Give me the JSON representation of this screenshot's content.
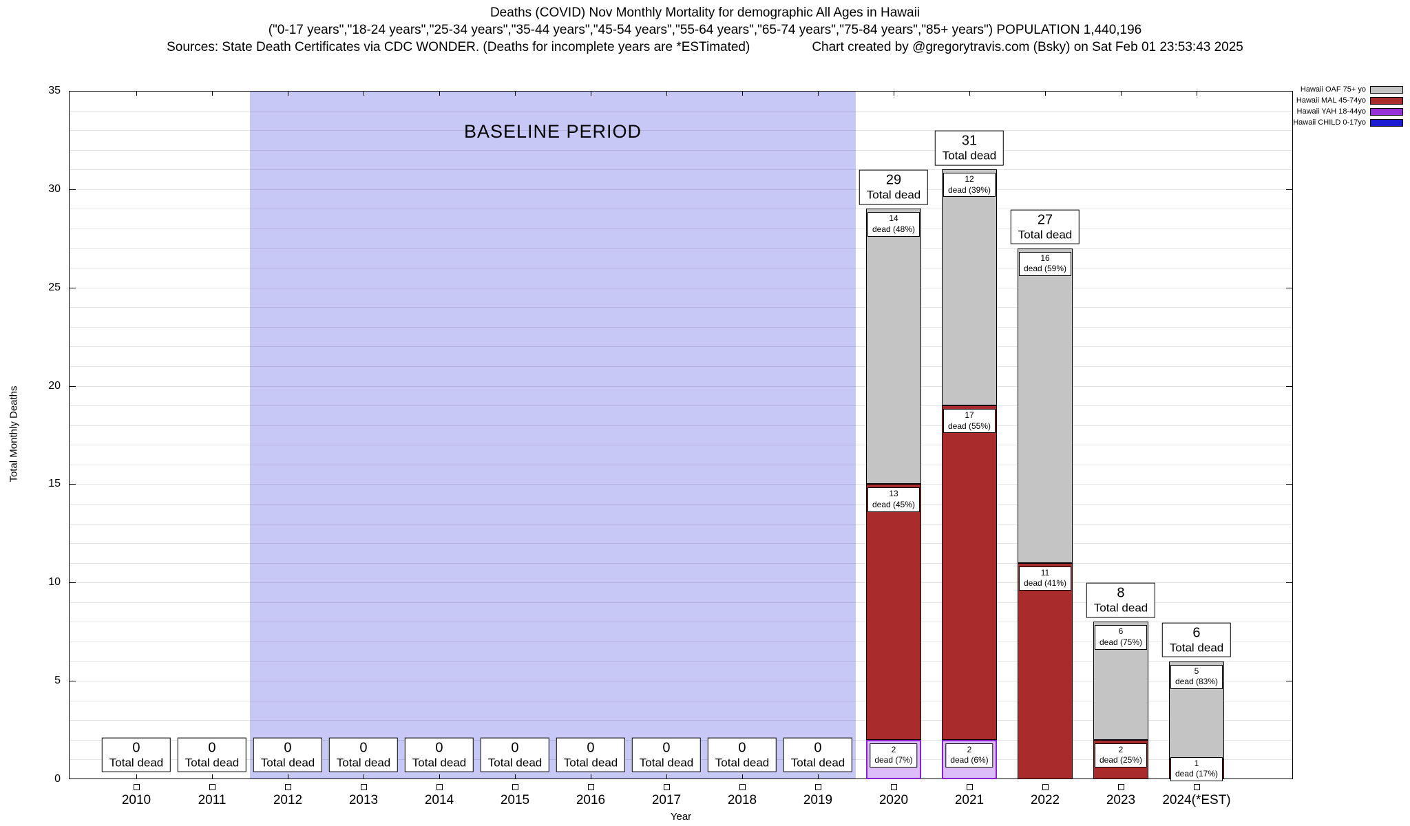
{
  "header": {
    "line1": "Deaths (COVID) Nov Monthly Mortality for demographic All Ages in Hawaii",
    "line2": "(\"0-17 years\",\"18-24 years\",\"25-34 years\",\"35-44 years\",\"45-54 years\",\"55-64 years\",\"65-74 years\",\"75-84 years\",\"85+ years\") POPULATION 1,440,196",
    "sources": "Sources: State Death Certificates via CDC WONDER. (Deaths for incomplete years are *ESTimated)",
    "credit": "Chart created by @gregorytravis.com (Bsky) on Sat Feb 01 23:53:43 2025"
  },
  "baseline": {
    "label": "BASELINE PERIOD",
    "start_category": "2012",
    "end_category": "2019",
    "color": "#c8c8f6"
  },
  "legend": {
    "items": [
      {
        "label": "Hawaii OAF 75+ yo",
        "color": "#c4c4c4"
      },
      {
        "label": "Hawaii MAL 45-74yo",
        "color": "#aa2b2b"
      },
      {
        "label": "Hawaii YAH 18-44yo",
        "color": "#9732d8"
      },
      {
        "label": "Hawaii CHILD 0-17yo",
        "color": "#1a1ad0"
      }
    ]
  },
  "series_styles": {
    "oaf": {
      "fill": "#c4c4c4",
      "border": "#000000",
      "border_width": 1
    },
    "mal": {
      "fill": "#aa2b2b",
      "border": "#000000",
      "border_width": 1
    },
    "yah": {
      "fill": "#ddbcfa",
      "border": "#8a20d0",
      "border_width": 2
    },
    "child": {
      "fill": "#1a1ad0",
      "border": "#000000",
      "border_width": 1
    }
  },
  "chart_data": {
    "type": "bar",
    "stacked": true,
    "title": "Deaths (COVID) Nov Monthly Mortality for demographic All Ages in Hawaii",
    "xlabel": "Year",
    "ylabel": "Total Monthly Deaths",
    "ylim": [
      0,
      35
    ],
    "y_ticks": [
      0,
      5,
      10,
      15,
      20,
      25,
      30,
      35
    ],
    "grid": "horizontal, every 1 unit",
    "legend_position": "top-right outside plot",
    "categories": [
      "2010",
      "2011",
      "2012",
      "2013",
      "2014",
      "2015",
      "2016",
      "2017",
      "2018",
      "2019",
      "2020",
      "2021",
      "2022",
      "2023",
      "2024(*EST)"
    ],
    "series": [
      {
        "key": "child",
        "name": "Hawaii CHILD 0-17yo",
        "values": [
          0,
          0,
          0,
          0,
          0,
          0,
          0,
          0,
          0,
          0,
          0,
          0,
          0,
          0,
          0
        ]
      },
      {
        "key": "yah",
        "name": "Hawaii YAH 18-44yo",
        "values": [
          0,
          0,
          0,
          0,
          0,
          0,
          0,
          0,
          0,
          0,
          2,
          2,
          0,
          0,
          0
        ]
      },
      {
        "key": "mal",
        "name": "Hawaii MAL 45-74yo",
        "values": [
          0,
          0,
          0,
          0,
          0,
          0,
          0,
          0,
          0,
          0,
          13,
          17,
          11,
          2,
          1
        ]
      },
      {
        "key": "oaf",
        "name": "Hawaii OAF 75+ yo",
        "values": [
          0,
          0,
          0,
          0,
          0,
          0,
          0,
          0,
          0,
          0,
          14,
          12,
          16,
          6,
          5
        ]
      }
    ],
    "totals": [
      0,
      0,
      0,
      0,
      0,
      0,
      0,
      0,
      0,
      0,
      29,
      31,
      27,
      8,
      6
    ],
    "total_label": "Total dead",
    "bars": [
      {
        "category": "2020",
        "total": 29,
        "segments": [
          {
            "key": "yah",
            "value": 2,
            "label": "dead (7%)"
          },
          {
            "key": "mal",
            "value": 13,
            "label": "dead (45%)"
          },
          {
            "key": "oaf",
            "value": 14,
            "label": "dead (48%)"
          }
        ]
      },
      {
        "category": "2021",
        "total": 31,
        "segments": [
          {
            "key": "yah",
            "value": 2,
            "label": "dead (6%)"
          },
          {
            "key": "mal",
            "value": 17,
            "label": "dead (55%)"
          },
          {
            "key": "oaf",
            "value": 12,
            "label": "dead (39%)"
          }
        ]
      },
      {
        "category": "2022",
        "total": 27,
        "segments": [
          {
            "key": "mal",
            "value": 11,
            "label": "dead (41%)"
          },
          {
            "key": "oaf",
            "value": 16,
            "label": "dead (59%)"
          }
        ]
      },
      {
        "category": "2023",
        "total": 8,
        "segments": [
          {
            "key": "mal",
            "value": 2,
            "label": "dead (25%)"
          },
          {
            "key": "oaf",
            "value": 6,
            "label": "dead (75%)"
          }
        ]
      },
      {
        "category": "2024(*EST)",
        "total": 6,
        "segments": [
          {
            "key": "mal",
            "value": 1,
            "label": "dead (17%)"
          },
          {
            "key": "oaf",
            "value": 5,
            "label": "dead (83%)"
          }
        ]
      }
    ]
  }
}
